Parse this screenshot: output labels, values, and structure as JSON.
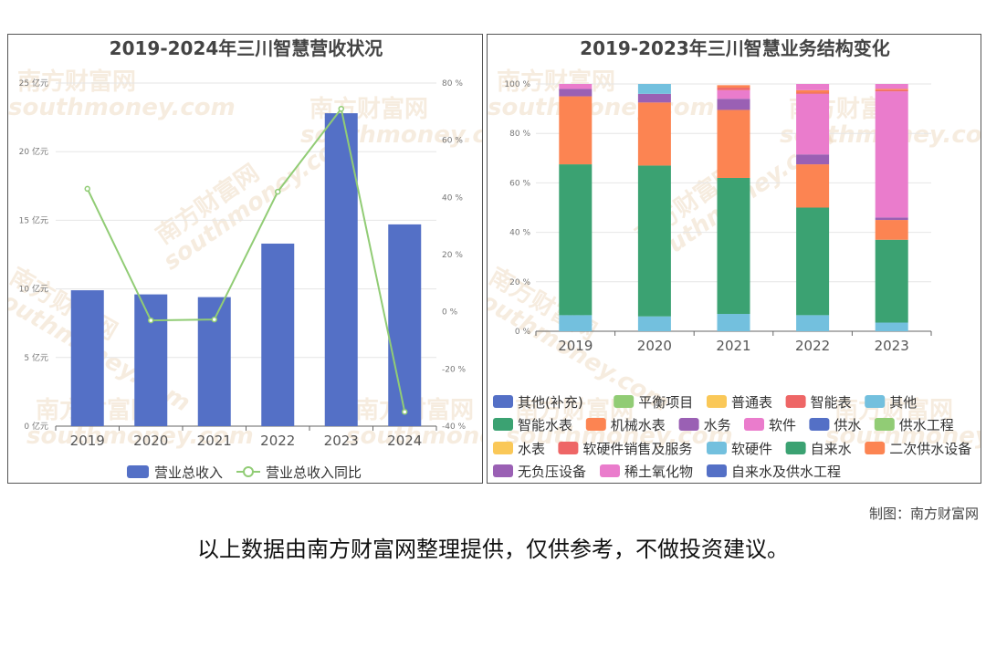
{
  "chart_data": [
    {
      "type": "bar+line",
      "title": "2019-2024年三川智慧营收状况",
      "categories": [
        "2019",
        "2020",
        "2021",
        "2022",
        "2023",
        "2024"
      ],
      "series": [
        {
          "name": "营业总收入",
          "kind": "bar",
          "axis": "left",
          "color": "#5470c6",
          "values": [
            9.9,
            9.6,
            9.4,
            13.3,
            22.8,
            14.7
          ]
        },
        {
          "name": "营业总收入同比",
          "kind": "line",
          "axis": "right",
          "color": "#91cc75",
          "values": [
            43,
            -3,
            -2.7,
            42,
            71,
            -35
          ]
        }
      ],
      "y_left": {
        "min": 0,
        "max": 25,
        "step": 5,
        "unit": " 亿元"
      },
      "y_right": {
        "min": -40,
        "max": 80,
        "step": 20,
        "unit": " %"
      },
      "legend_position": "bottom"
    },
    {
      "type": "stacked-bar",
      "title": "2019-2023年三川智慧业务结构变化",
      "categories": [
        "2019",
        "2020",
        "2021",
        "2022",
        "2023"
      ],
      "y": {
        "min": 0,
        "max": 100,
        "step": 20,
        "unit": " %"
      },
      "series": [
        {
          "name": "其他(补充)",
          "color": "#5470c6",
          "values": [
            0,
            0,
            0,
            0,
            0
          ]
        },
        {
          "name": "平衡项目",
          "color": "#91cc75",
          "values": [
            0,
            0,
            0,
            0,
            0
          ]
        },
        {
          "name": "普通表",
          "color": "#fac858",
          "values": [
            0,
            0,
            0,
            0,
            0
          ]
        },
        {
          "name": "智能表",
          "color": "#ee6666",
          "values": [
            0,
            0,
            0,
            0,
            0
          ]
        },
        {
          "name": "其他",
          "color": "#73c0de",
          "values": [
            6.5,
            6,
            7,
            6.5,
            3.5
          ]
        },
        {
          "name": "智能水表",
          "color": "#3ba272",
          "values": [
            61,
            61,
            55,
            43.5,
            33.5
          ]
        },
        {
          "name": "机械水表",
          "color": "#fc8452",
          "values": [
            27.5,
            25.5,
            27.5,
            17.5,
            8
          ]
        },
        {
          "name": "水务",
          "color": "#9a60b4",
          "values": [
            3,
            3.5,
            4.5,
            4,
            1
          ]
        },
        {
          "name": "软件",
          "color": "#ea7ccc",
          "values": [
            2,
            0,
            3.5,
            24.5,
            51
          ]
        },
        {
          "name": "供水",
          "color": "#5470c6",
          "values": [
            0,
            0,
            0,
            0,
            0
          ]
        },
        {
          "name": "供水工程",
          "color": "#91cc75",
          "values": [
            0,
            0,
            0,
            0,
            0
          ]
        },
        {
          "name": "水表",
          "color": "#fac858",
          "values": [
            0,
            0,
            0,
            0,
            0
          ]
        },
        {
          "name": "软硬件销售及服务",
          "color": "#ee6666",
          "values": [
            0,
            0,
            1,
            0.5,
            0.5
          ]
        },
        {
          "name": "软硬件",
          "color": "#73c0de",
          "values": [
            0,
            4,
            0,
            0,
            0
          ]
        },
        {
          "name": "自来水",
          "color": "#3ba272",
          "values": [
            0,
            0,
            0,
            0,
            0
          ]
        },
        {
          "name": "二次供水设备",
          "color": "#fc8452",
          "values": [
            0,
            0,
            1,
            1,
            0.5
          ]
        },
        {
          "name": "无负压设备",
          "color": "#9a60b4",
          "values": [
            0,
            0,
            0,
            0,
            0
          ]
        },
        {
          "name": "稀土氧化物",
          "color": "#ea7ccc",
          "values": [
            0,
            0,
            0,
            2.5,
            2
          ]
        },
        {
          "name": "自来水及供水工程",
          "color": "#5470c6",
          "values": [
            0,
            0,
            0,
            0,
            0
          ]
        }
      ],
      "legend_position": "bottom"
    }
  ],
  "watermark": {
    "cn": "南方财富网",
    "en": "southmoney.com"
  },
  "credit": "制图：南方财富网",
  "disclaimer": "以上数据由南方财富网整理提供，仅供参考，不做投资建议。"
}
